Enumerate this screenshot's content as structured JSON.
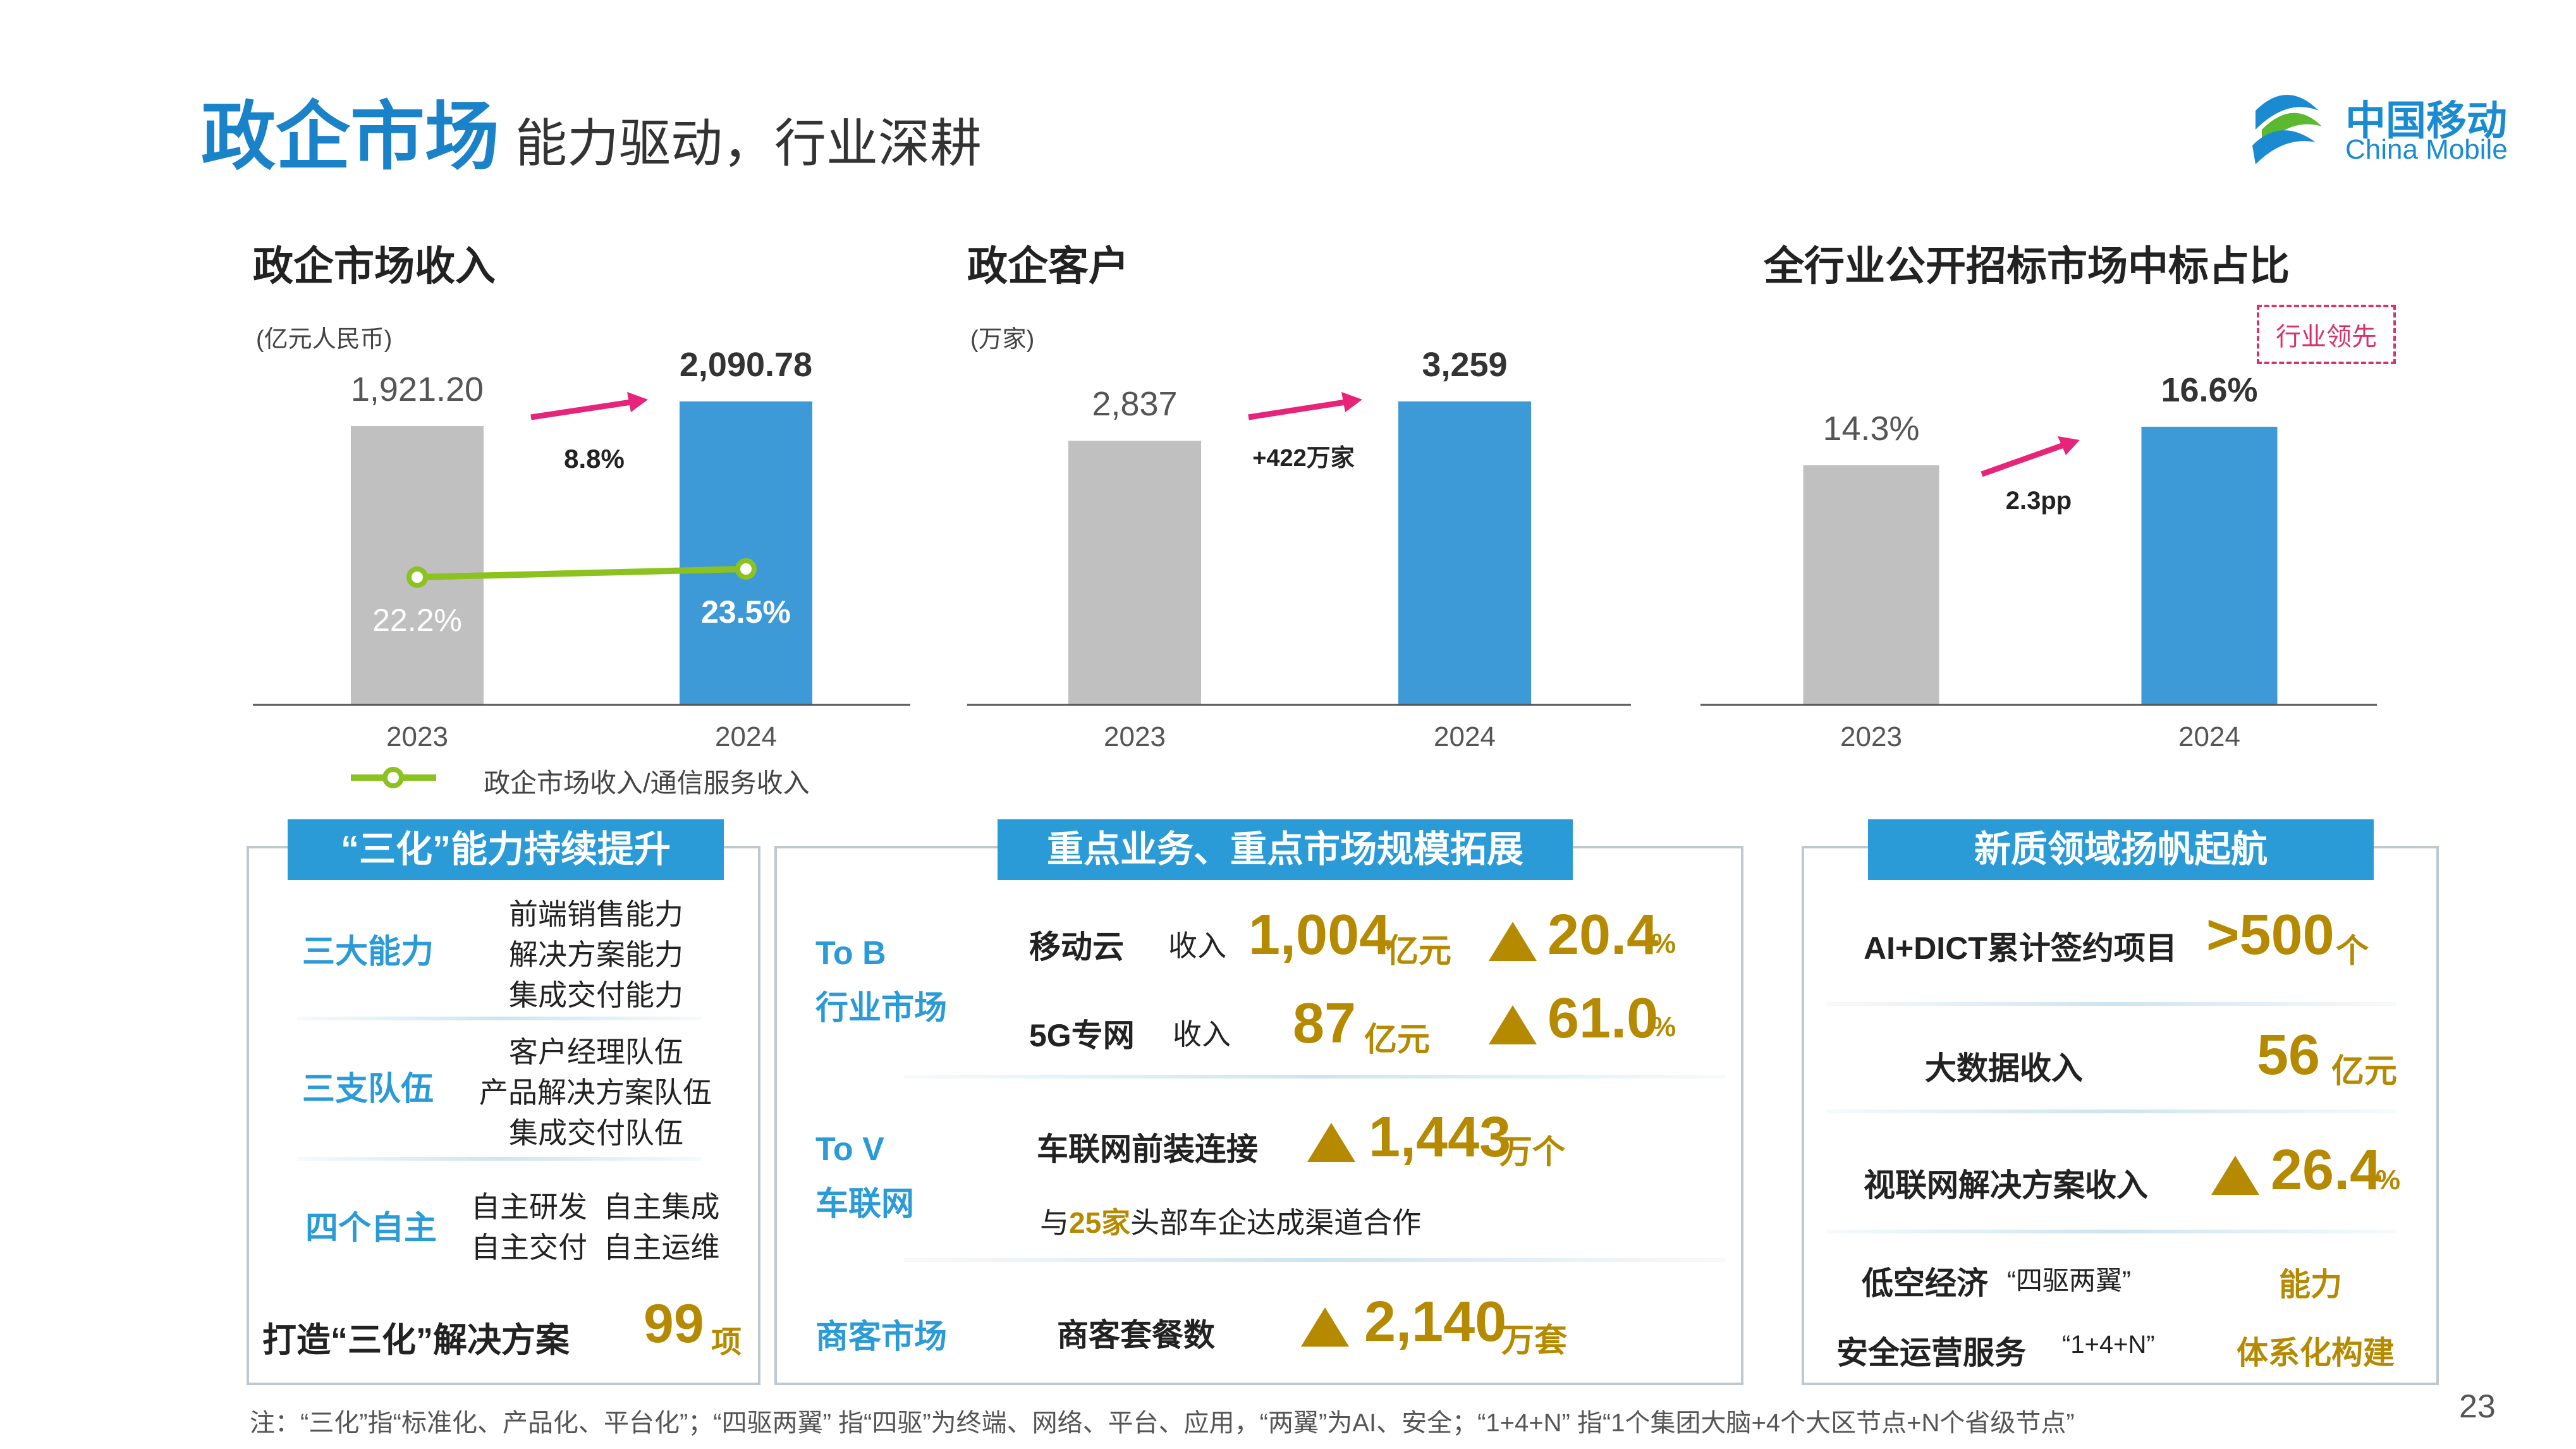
{
  "header": {
    "title": "政企市场",
    "subtitle": "能力驱动，行业深耕",
    "logo_cn": "中国移动",
    "logo_en": "China Mobile"
  },
  "chart_data": [
    {
      "type": "bar",
      "title": "政企市场收入",
      "unit": "(亿元人民币)",
      "categories": [
        "2023",
        "2024"
      ],
      "values": [
        1921.2,
        2090.78
      ],
      "value_labels": [
        "1,921.20",
        "2,090.78"
      ],
      "growth_label": "8.8%",
      "bar_colors": [
        "#c0c0c0",
        "#3d9ad6"
      ],
      "line_series": {
        "name": "政企市场收入/通信服务收入",
        "values": [
          22.2,
          23.5
        ],
        "value_labels": [
          "22.2%",
          "23.5%"
        ],
        "color": "#8cc21f"
      }
    },
    {
      "type": "bar",
      "title": "政企客户",
      "unit": "(万家)",
      "categories": [
        "2023",
        "2024"
      ],
      "values": [
        2837,
        3259
      ],
      "value_labels": [
        "2,837",
        "3,259"
      ],
      "growth_label": "+422万家",
      "bar_colors": [
        "#c0c0c0",
        "#3d9ad6"
      ]
    },
    {
      "type": "bar",
      "title": "全行业公开招标市场中标占比",
      "badge": "行业领先",
      "categories": [
        "2023",
        "2024"
      ],
      "values": [
        14.3,
        16.6
      ],
      "value_labels": [
        "14.3%",
        "16.6%"
      ],
      "growth_label": "2.3pp",
      "bar_colors": [
        "#c0c0c0",
        "#3d9ad6"
      ]
    }
  ],
  "panel1": {
    "banner": "“三化”能力持续提升",
    "rows": [
      {
        "label": "三大能力",
        "items": [
          "前端销售能力",
          "解决方案能力",
          "集成交付能力"
        ]
      },
      {
        "label": "三支队伍",
        "items": [
          "客户经理队伍",
          "产品解决方案队伍",
          "集成交付队伍"
        ]
      },
      {
        "label": "四个自主",
        "items": [
          "自主研发  自主集成",
          "自主交付  自主运维"
        ]
      }
    ],
    "footer_text": "打造“三化”解决方案",
    "footer_value": "99",
    "footer_unit": "项"
  },
  "panel2": {
    "banner": "重点业务、重点市场规模拓展",
    "tob": {
      "label_1": "To B",
      "label_2": "行业市场",
      "cloud": {
        "name": "移动云",
        "kind": "收入",
        "value": "1,004",
        "unit": "亿元",
        "growth": "20.4",
        "pct": "%"
      },
      "g5": {
        "name": "5G专网",
        "kind": "收入",
        "value": "87",
        "unit": "亿元",
        "growth": "61.0",
        "pct": "%"
      }
    },
    "tov": {
      "label_1": "To V",
      "label_2": "车联网",
      "name": "车联网前装连接",
      "value": "1,443",
      "unit": "万个",
      "note_pre": "与",
      "note_num": "25家",
      "note_post": "头部车企达成渠道合作"
    },
    "shangke": {
      "label": "商客市场",
      "name": "商客套餐数",
      "value": "2,140",
      "unit": "万套"
    }
  },
  "panel3": {
    "banner": "新质领域扬帆起航",
    "ai": {
      "name": "AI+DICT累计签约项目",
      "value": ">500",
      "unit": "个"
    },
    "bigdata": {
      "name": "大数据收入",
      "value": "56",
      "unit": "亿元"
    },
    "video": {
      "name": "视联网解决方案收入",
      "value": "26.4",
      "pct": "%"
    },
    "lowalt": {
      "name": "低空经济",
      "tag": "“四驱两翼”",
      "result": "能力"
    },
    "security": {
      "name": "安全运营服务",
      "tag": "“1+4+N”",
      "result": "体系化构建"
    }
  },
  "footnote": "注：“三化”指“标准化、产品化、平台化”；“四驱两翼” 指“四驱”为终端、网络、平台、应用，“两翼”为AI、安全；“1+4+N” 指“1个集团大脑+4个大区节点+N个省级节点”",
  "page_number": "23"
}
